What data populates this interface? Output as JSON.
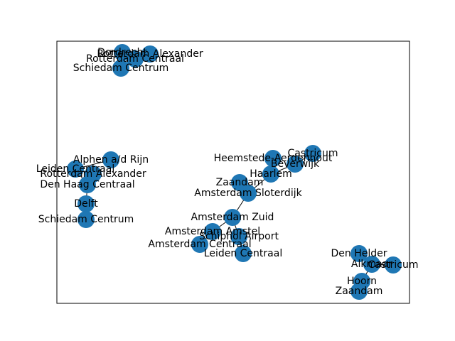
{
  "colors": {
    "node": "#1f77b4",
    "edge": "#000000",
    "frame": "#000000",
    "background": "#ffffff"
  },
  "nodes": [
    {
      "id": "dordrecht",
      "label": "Dordrecht"
    },
    {
      "id": "rotterdam-alexander",
      "label": "Rotterdam Alexander"
    },
    {
      "id": "rotterdam-centraal",
      "label": "Rotterdam Centraal"
    },
    {
      "id": "schiedam-centrum",
      "label": "Schiedam Centrum"
    },
    {
      "id": "alphen-a-d-rijn",
      "label": "Alphen a/d Rijn"
    },
    {
      "id": "leiden-centraal-left",
      "label": "Leiden Centraal"
    },
    {
      "id": "rotterdam-alexander-left",
      "label": "Rotterdam Alexander"
    },
    {
      "id": "den-haag-centraal",
      "label": "Den Haag Centraal"
    },
    {
      "id": "delft",
      "label": "Delft"
    },
    {
      "id": "schiedam-centrum-left",
      "label": "Schiedam Centrum"
    },
    {
      "id": "heemstede-aerdenhout",
      "label": "Heemstede-Aerdenhout"
    },
    {
      "id": "castricum-mid",
      "label": "Castricum"
    },
    {
      "id": "beverwijk",
      "label": "Beverwijk"
    },
    {
      "id": "haarlem",
      "label": "Haarlem"
    },
    {
      "id": "zaandam-mid",
      "label": "Zaandam"
    },
    {
      "id": "amsterdam-sloterdijk",
      "label": "Amsterdam Sloterdijk"
    },
    {
      "id": "amsterdam-zuid",
      "label": "Amsterdam Zuid"
    },
    {
      "id": "amsterdam-amstel",
      "label": "Amsterdam Amstel"
    },
    {
      "id": "schiphol-airport",
      "label": "Schiphol Airport"
    },
    {
      "id": "amsterdam-centraal",
      "label": "Amsterdam Centraal"
    },
    {
      "id": "leiden-centraal",
      "label": "Leiden Centraal"
    },
    {
      "id": "den-helder",
      "label": "Den Helder"
    },
    {
      "id": "alkmaar",
      "label": "Alkmaar"
    },
    {
      "id": "castricum-right",
      "label": "Castricum"
    },
    {
      "id": "hoorn",
      "label": "Hoorn"
    },
    {
      "id": "zaandam-right",
      "label": "Zaandam"
    }
  ],
  "edges": [
    [
      "dordrecht",
      "rotterdam-centraal"
    ],
    [
      "rotterdam-alexander",
      "rotterdam-centraal"
    ],
    [
      "rotterdam-centraal",
      "schiedam-centrum"
    ],
    [
      "alphen-a-d-rijn",
      "leiden-centraal-left"
    ],
    [
      "leiden-centraal-left",
      "rotterdam-alexander-left"
    ],
    [
      "leiden-centraal-left",
      "den-haag-centraal"
    ],
    [
      "rotterdam-alexander-left",
      "den-haag-centraal"
    ],
    [
      "den-haag-centraal",
      "delft"
    ],
    [
      "delft",
      "schiedam-centrum-left"
    ],
    [
      "heemstede-aerdenhout",
      "haarlem"
    ],
    [
      "castricum-mid",
      "beverwijk"
    ],
    [
      "beverwijk",
      "haarlem"
    ],
    [
      "haarlem",
      "amsterdam-sloterdijk"
    ],
    [
      "zaandam-mid",
      "amsterdam-sloterdijk"
    ],
    [
      "amsterdam-sloterdijk",
      "amsterdam-zuid"
    ],
    [
      "amsterdam-zuid",
      "amsterdam-amstel"
    ],
    [
      "amsterdam-zuid",
      "schiphol-airport"
    ],
    [
      "amsterdam-amstel",
      "amsterdam-centraal"
    ],
    [
      "schiphol-airport",
      "leiden-centraal"
    ],
    [
      "den-helder",
      "alkmaar"
    ],
    [
      "alkmaar",
      "castricum-right"
    ],
    [
      "alkmaar",
      "hoorn"
    ],
    [
      "hoorn",
      "zaandam-right"
    ]
  ]
}
